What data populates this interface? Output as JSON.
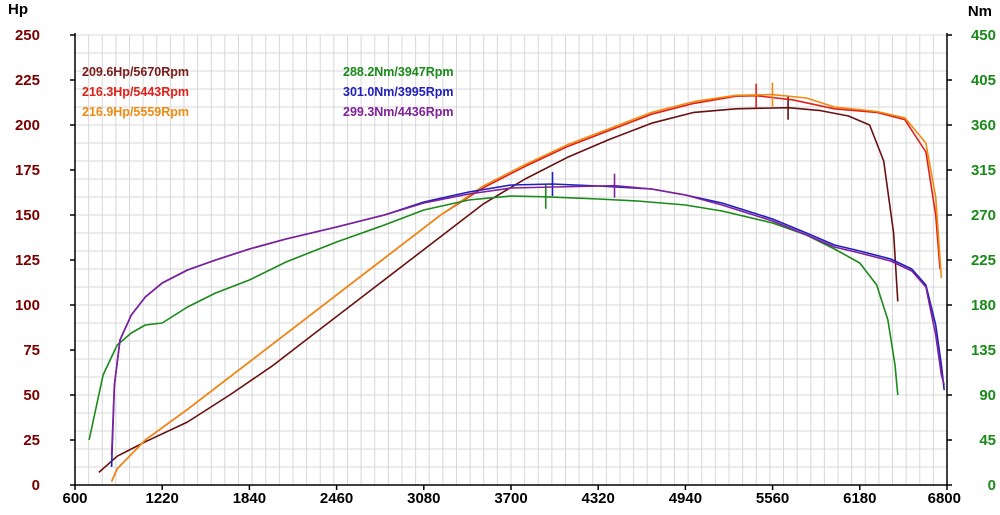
{
  "chart_data": {
    "type": "line",
    "left_axis": {
      "label": "Hp",
      "ticks": [
        0,
        25,
        50,
        75,
        100,
        125,
        150,
        175,
        200,
        225,
        250
      ],
      "range": [
        0,
        250
      ],
      "color": "#7a0000"
    },
    "right_axis": {
      "label": "Nm",
      "ticks": [
        0,
        45,
        90,
        135,
        180,
        225,
        270,
        315,
        360,
        405,
        450
      ],
      "range": [
        0,
        450
      ],
      "color": "#1a8a1a"
    },
    "x_axis": {
      "ticks": [
        600,
        1220,
        1840,
        2460,
        3080,
        3700,
        4320,
        4940,
        5560,
        6180,
        6800
      ],
      "range": [
        600,
        6800
      ]
    },
    "grid": true,
    "legend": [
      {
        "text": "209.6Hp/5670Rpm",
        "color": "#7a1a1a"
      },
      {
        "text": "216.3Hp/5443Rpm",
        "color": "#e0201a"
      },
      {
        "text": "216.9Hp/5559Rpm",
        "color": "#f08a10"
      },
      {
        "text": "288.2Nm/3947Rpm",
        "color": "#1a8a1a"
      },
      {
        "text": "301.0Nm/3995Rpm",
        "color": "#2020c0"
      },
      {
        "text": "299.3Nm/4436Rpm",
        "color": "#80209a"
      }
    ],
    "series": [
      {
        "axis": "left",
        "color": "#6a1010",
        "peak": [
          5670,
          209.6
        ],
        "points": [
          [
            770,
            7
          ],
          [
            900,
            16
          ],
          [
            1100,
            24
          ],
          [
            1400,
            35
          ],
          [
            1700,
            50
          ],
          [
            2000,
            66
          ],
          [
            2300,
            84
          ],
          [
            2600,
            102
          ],
          [
            2900,
            120
          ],
          [
            3200,
            138
          ],
          [
            3500,
            156
          ],
          [
            3800,
            170
          ],
          [
            4100,
            182
          ],
          [
            4400,
            192
          ],
          [
            4700,
            201
          ],
          [
            5000,
            207
          ],
          [
            5300,
            209
          ],
          [
            5670,
            209.6
          ],
          [
            5900,
            208
          ],
          [
            6100,
            205
          ],
          [
            6250,
            200
          ],
          [
            6350,
            180
          ],
          [
            6420,
            140
          ],
          [
            6450,
            102
          ]
        ]
      },
      {
        "axis": "left",
        "color": "#e0201a",
        "peak": [
          5443,
          216.3
        ],
        "points": [
          [
            860,
            2
          ],
          [
            900,
            9
          ],
          [
            1100,
            25
          ],
          [
            1400,
            42
          ],
          [
            1700,
            60
          ],
          [
            2000,
            78
          ],
          [
            2300,
            96
          ],
          [
            2600,
            114
          ],
          [
            2900,
            132
          ],
          [
            3200,
            150
          ],
          [
            3500,
            165
          ],
          [
            3800,
            177
          ],
          [
            4100,
            188
          ],
          [
            4400,
            197
          ],
          [
            4700,
            206
          ],
          [
            5000,
            212
          ],
          [
            5300,
            216
          ],
          [
            5443,
            216.3
          ],
          [
            5700,
            214
          ],
          [
            6000,
            209
          ],
          [
            6300,
            207
          ],
          [
            6500,
            203
          ],
          [
            6650,
            185
          ],
          [
            6720,
            150
          ],
          [
            6750,
            120
          ]
        ]
      },
      {
        "axis": "left",
        "color": "#f08a10",
        "peak": [
          5559,
          216.9
        ],
        "points": [
          [
            860,
            2
          ],
          [
            900,
            9
          ],
          [
            1100,
            25
          ],
          [
            1400,
            42
          ],
          [
            1700,
            60
          ],
          [
            2000,
            78
          ],
          [
            2300,
            96
          ],
          [
            2600,
            114
          ],
          [
            2900,
            132
          ],
          [
            3200,
            150
          ],
          [
            3500,
            166
          ],
          [
            3800,
            178
          ],
          [
            4100,
            189
          ],
          [
            4400,
            198
          ],
          [
            4700,
            207
          ],
          [
            5000,
            213
          ],
          [
            5300,
            216.5
          ],
          [
            5559,
            216.9
          ],
          [
            5800,
            215
          ],
          [
            6000,
            210
          ],
          [
            6300,
            207.5
          ],
          [
            6500,
            204
          ],
          [
            6650,
            190
          ],
          [
            6720,
            160
          ],
          [
            6760,
            115
          ]
        ]
      },
      {
        "axis": "right",
        "color": "#1a8a1a",
        "peak": [
          3947,
          288.2
        ],
        "points": [
          [
            700,
            45
          ],
          [
            800,
            110
          ],
          [
            900,
            140
          ],
          [
            1000,
            152
          ],
          [
            1100,
            160
          ],
          [
            1220,
            162
          ],
          [
            1400,
            178
          ],
          [
            1600,
            192
          ],
          [
            1840,
            205
          ],
          [
            2100,
            223
          ],
          [
            2460,
            243
          ],
          [
            2800,
            260
          ],
          [
            3080,
            275
          ],
          [
            3400,
            285
          ],
          [
            3700,
            289
          ],
          [
            3947,
            288.2
          ],
          [
            4320,
            286
          ],
          [
            4600,
            284
          ],
          [
            4940,
            280
          ],
          [
            5200,
            274
          ],
          [
            5560,
            262
          ],
          [
            5800,
            250
          ],
          [
            6000,
            236
          ],
          [
            6180,
            222
          ],
          [
            6300,
            200
          ],
          [
            6380,
            165
          ],
          [
            6430,
            120
          ],
          [
            6450,
            90
          ]
        ]
      },
      {
        "axis": "right",
        "color": "#2020c0",
        "peak": [
          3995,
          301.0
        ],
        "points": [
          [
            860,
            18
          ],
          [
            880,
            100
          ],
          [
            920,
            145
          ],
          [
            1000,
            170
          ],
          [
            1100,
            188
          ],
          [
            1220,
            202
          ],
          [
            1400,
            215
          ],
          [
            1600,
            225
          ],
          [
            1840,
            236
          ],
          [
            2100,
            246
          ],
          [
            2460,
            258
          ],
          [
            2800,
            270
          ],
          [
            3080,
            283
          ],
          [
            3400,
            293
          ],
          [
            3700,
            300
          ],
          [
            3995,
            301.0
          ],
          [
            4320,
            299
          ],
          [
            4700,
            296
          ],
          [
            4940,
            290
          ],
          [
            5200,
            282
          ],
          [
            5560,
            266
          ],
          [
            5800,
            252
          ],
          [
            6000,
            240
          ],
          [
            6180,
            234
          ],
          [
            6400,
            226
          ],
          [
            6550,
            216
          ],
          [
            6650,
            200
          ],
          [
            6720,
            160
          ],
          [
            6760,
            120
          ],
          [
            6780,
            95
          ]
        ]
      },
      {
        "axis": "right",
        "color": "#80209a",
        "peak": [
          4436,
          299.3
        ],
        "points": [
          [
            860,
            30
          ],
          [
            880,
            100
          ],
          [
            920,
            145
          ],
          [
            1000,
            170
          ],
          [
            1100,
            188
          ],
          [
            1220,
            202
          ],
          [
            1400,
            215
          ],
          [
            1600,
            225
          ],
          [
            1840,
            236
          ],
          [
            2100,
            246
          ],
          [
            2460,
            258
          ],
          [
            2800,
            270
          ],
          [
            3080,
            282
          ],
          [
            3400,
            291
          ],
          [
            3700,
            297
          ],
          [
            4000,
            298
          ],
          [
            4436,
            299.3
          ],
          [
            4700,
            296
          ],
          [
            4940,
            290
          ],
          [
            5200,
            280
          ],
          [
            5560,
            264
          ],
          [
            5800,
            250
          ],
          [
            6000,
            238
          ],
          [
            6180,
            232
          ],
          [
            6400,
            224
          ],
          [
            6550,
            214
          ],
          [
            6650,
            198
          ],
          [
            6720,
            150
          ],
          [
            6760,
            110
          ],
          [
            6780,
            100
          ]
        ]
      }
    ]
  }
}
